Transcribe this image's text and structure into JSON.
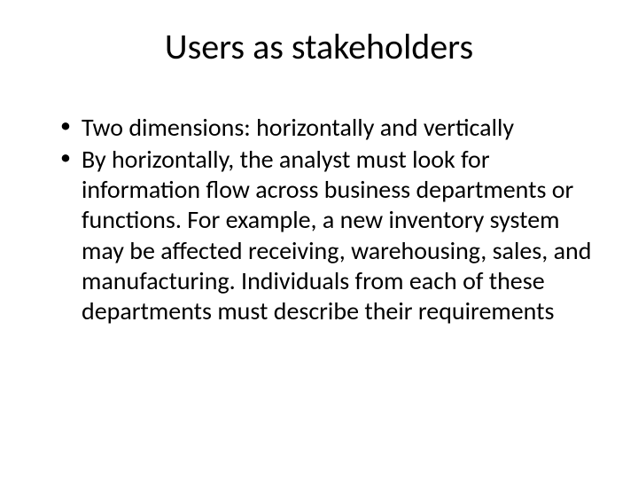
{
  "slide": {
    "title": "Users as stakeholders",
    "bullets": [
      "Two dimensions: horizontally and vertically",
      "By horizontally, the analyst must look for information flow across business departments or functions. For example, a new inventory system may be affected receiving, warehousing, sales, and manufacturing. Individuals from each of these departments must describe their requirements"
    ]
  },
  "style": {
    "background_color": "#ffffff",
    "text_color": "#000000",
    "title_fontsize": 40,
    "body_fontsize": 28,
    "font_family": "Calibri"
  }
}
